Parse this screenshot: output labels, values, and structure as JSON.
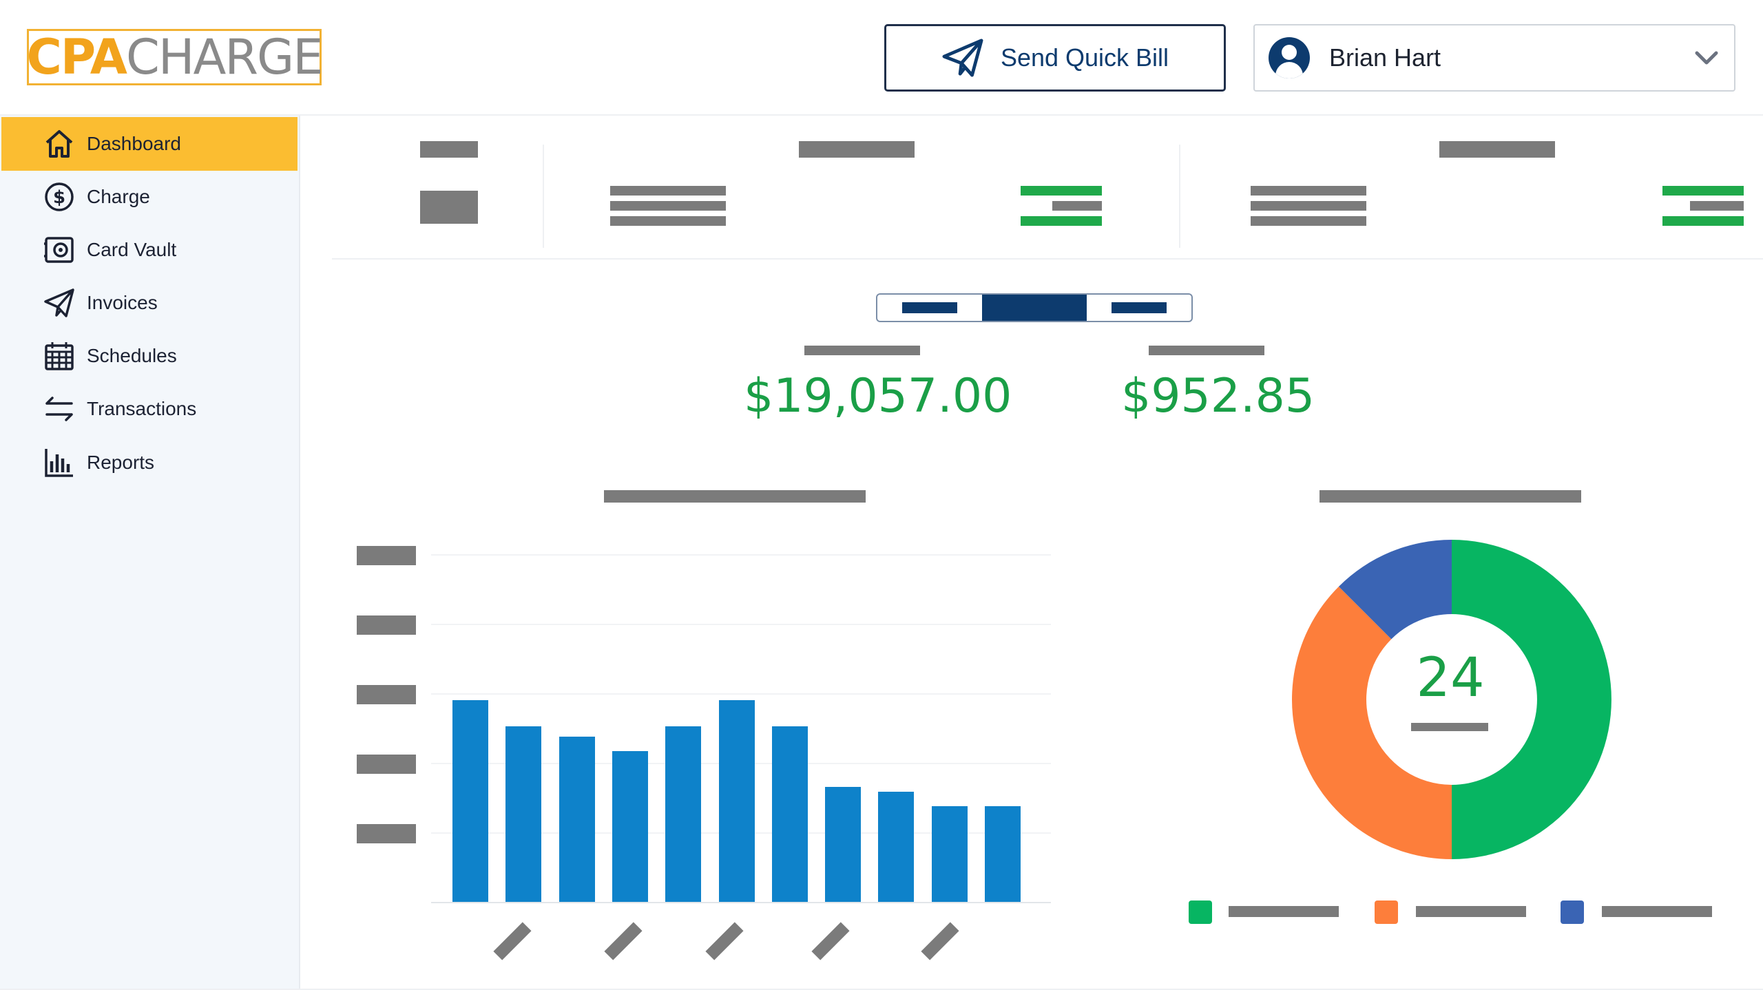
{
  "header": {
    "logo_part1": "CPA",
    "logo_part2": "CHARGE",
    "quick_bill_label": "Send Quick Bill",
    "user_name": "Brian Hart"
  },
  "sidebar": {
    "items": [
      {
        "label": "Dashboard",
        "icon": "home-icon",
        "active": true
      },
      {
        "label": "Charge",
        "icon": "dollar-circle-icon"
      },
      {
        "label": "Card Vault",
        "icon": "vault-icon"
      },
      {
        "label": "Invoices",
        "icon": "paper-plane-icon"
      },
      {
        "label": "Schedules",
        "icon": "calendar-icon"
      },
      {
        "label": "Transactions",
        "icon": "transfer-arrows-icon"
      },
      {
        "label": "Reports",
        "icon": "bar-chart-icon"
      }
    ]
  },
  "summary": {
    "amount_1": "$19,057.00",
    "amount_2": "$952.85",
    "donut_center": "24"
  },
  "colors": {
    "accent": "#fbbd31",
    "brand_navy": "#0d3b6e",
    "green": "#1fa94a",
    "bar_blue": "#0e82ca",
    "donut_green": "#07b562",
    "donut_orange": "#fd7e3b",
    "donut_blue": "#3a64b4"
  },
  "chart_data": [
    {
      "type": "bar",
      "values": [
        29,
        25.2,
        23.8,
        21.7,
        25.2,
        29,
        25.2,
        16.5,
        15.8,
        13.8,
        13.8
      ],
      "ylim": [
        0,
        50
      ],
      "grid": true
    },
    {
      "type": "pie",
      "values": [
        50,
        37.5,
        12.5
      ],
      "colors": [
        "#07b562",
        "#fd7e3b",
        "#3a64b4"
      ]
    }
  ]
}
